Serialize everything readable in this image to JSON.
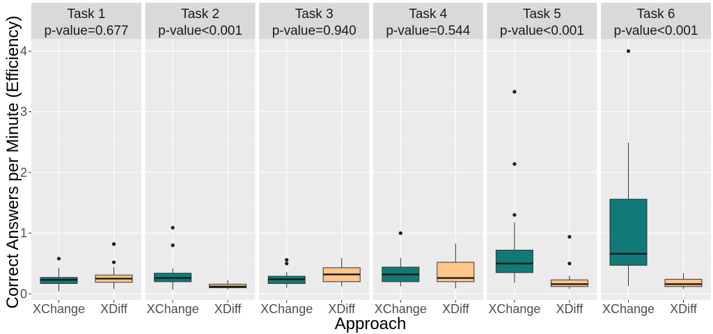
{
  "chart_data": {
    "type": "boxplot",
    "facet_by": "task",
    "x_categories": [
      "XChange",
      "XDiff"
    ],
    "xlabel": "Approach",
    "ylabel": "Correct Answers per Minute (Efficiency)",
    "ylim": [
      -0.1,
      4.2
    ],
    "yticks": [
      0,
      1,
      2,
      3,
      4
    ],
    "grid": true,
    "colors": {
      "XChange": "#117a78",
      "XDiff": "#ffc68a"
    },
    "panels": [
      {
        "title": "Task 1",
        "subtitle": "p-value=0.677",
        "boxes": [
          {
            "category": "XChange",
            "min": 0.04,
            "q1": 0.17,
            "median": 0.23,
            "q3": 0.27,
            "max": 0.43,
            "outliers": [
              0.58
            ]
          },
          {
            "category": "XDiff",
            "min": 0.08,
            "q1": 0.19,
            "median": 0.25,
            "q3": 0.31,
            "max": 0.44,
            "outliers": [
              0.52,
              0.82
            ]
          }
        ]
      },
      {
        "title": "Task 2",
        "subtitle": "p-value<0.001",
        "boxes": [
          {
            "category": "XChange",
            "min": 0.07,
            "q1": 0.2,
            "median": 0.26,
            "q3": 0.34,
            "max": 0.42,
            "outliers": [
              0.8,
              1.09
            ]
          },
          {
            "category": "XDiff",
            "min": 0.07,
            "q1": 0.1,
            "median": 0.12,
            "q3": 0.16,
            "max": 0.23,
            "outliers": []
          }
        ]
      },
      {
        "title": "Task 3",
        "subtitle": "p-value=0.940",
        "boxes": [
          {
            "category": "XChange",
            "min": 0.1,
            "q1": 0.17,
            "median": 0.24,
            "q3": 0.29,
            "max": 0.36,
            "outliers": [
              0.5,
              0.56
            ]
          },
          {
            "category": "XDiff",
            "min": 0.12,
            "q1": 0.2,
            "median": 0.32,
            "q3": 0.43,
            "max": 0.59,
            "outliers": []
          }
        ]
      },
      {
        "title": "Task 4",
        "subtitle": "p-value=0.544",
        "boxes": [
          {
            "category": "XChange",
            "min": 0.12,
            "q1": 0.2,
            "median": 0.32,
            "q3": 0.44,
            "max": 0.59,
            "outliers": [
              1.0
            ]
          },
          {
            "category": "XDiff",
            "min": 0.09,
            "q1": 0.2,
            "median": 0.26,
            "q3": 0.52,
            "max": 0.83,
            "outliers": []
          }
        ]
      },
      {
        "title": "Task 5",
        "subtitle": "p-value<0.001",
        "boxes": [
          {
            "category": "XChange",
            "min": 0.18,
            "q1": 0.35,
            "median": 0.5,
            "q3": 0.72,
            "max": 1.18,
            "outliers": [
              1.3,
              2.14,
              3.33
            ]
          },
          {
            "category": "XDiff",
            "min": 0.08,
            "q1": 0.12,
            "median": 0.16,
            "q3": 0.23,
            "max": 0.3,
            "outliers": [
              0.5,
              0.94
            ]
          }
        ]
      },
      {
        "title": "Task 6",
        "subtitle": "p-value<0.001",
        "boxes": [
          {
            "category": "XChange",
            "min": 0.13,
            "q1": 0.47,
            "median": 0.66,
            "q3": 1.56,
            "max": 2.49,
            "outliers": [
              4.0
            ]
          },
          {
            "category": "XDiff",
            "min": 0.08,
            "q1": 0.12,
            "median": 0.16,
            "q3": 0.24,
            "max": 0.34,
            "outliers": []
          }
        ]
      }
    ]
  }
}
